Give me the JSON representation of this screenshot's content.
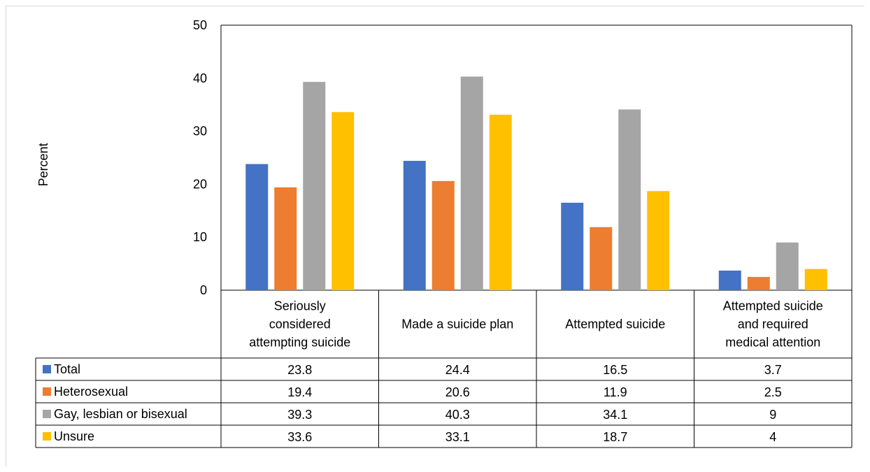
{
  "chart_data": {
    "type": "bar",
    "ylabel": "Percent",
    "ylim": [
      0,
      50
    ],
    "yticks": [
      "0",
      "10",
      "20",
      "30",
      "40",
      "50"
    ],
    "grid": false,
    "legend_placement": "data table, left of rows",
    "categories": [
      [
        "Seriously",
        "considered",
        "attempting suicide"
      ],
      [
        "Made a suicide plan"
      ],
      [
        "Attempted suicide"
      ],
      [
        "Attempted suicide",
        "and required",
        "medical attention"
      ]
    ],
    "series": [
      {
        "name": "Total",
        "color": "#4472C4",
        "values": [
          23.8,
          24.4,
          16.5,
          3.7
        ],
        "labels": [
          "23.8",
          "24.4",
          "16.5",
          "3.7"
        ]
      },
      {
        "name": "Heterosexual",
        "color": "#ED7D31",
        "values": [
          19.4,
          20.6,
          11.9,
          2.5
        ],
        "labels": [
          "19.4",
          "20.6",
          "11.9",
          "2.5"
        ]
      },
      {
        "name": "Gay, lesbian or bisexual",
        "color": "#A5A5A5",
        "values": [
          39.3,
          40.3,
          34.1,
          9
        ],
        "labels": [
          "39.3",
          "40.3",
          "34.1",
          "9"
        ]
      },
      {
        "name": "Unsure",
        "color": "#FFC000",
        "values": [
          33.6,
          33.1,
          18.7,
          4
        ],
        "labels": [
          "33.6",
          "33.1",
          "18.7",
          "4"
        ]
      }
    ]
  }
}
